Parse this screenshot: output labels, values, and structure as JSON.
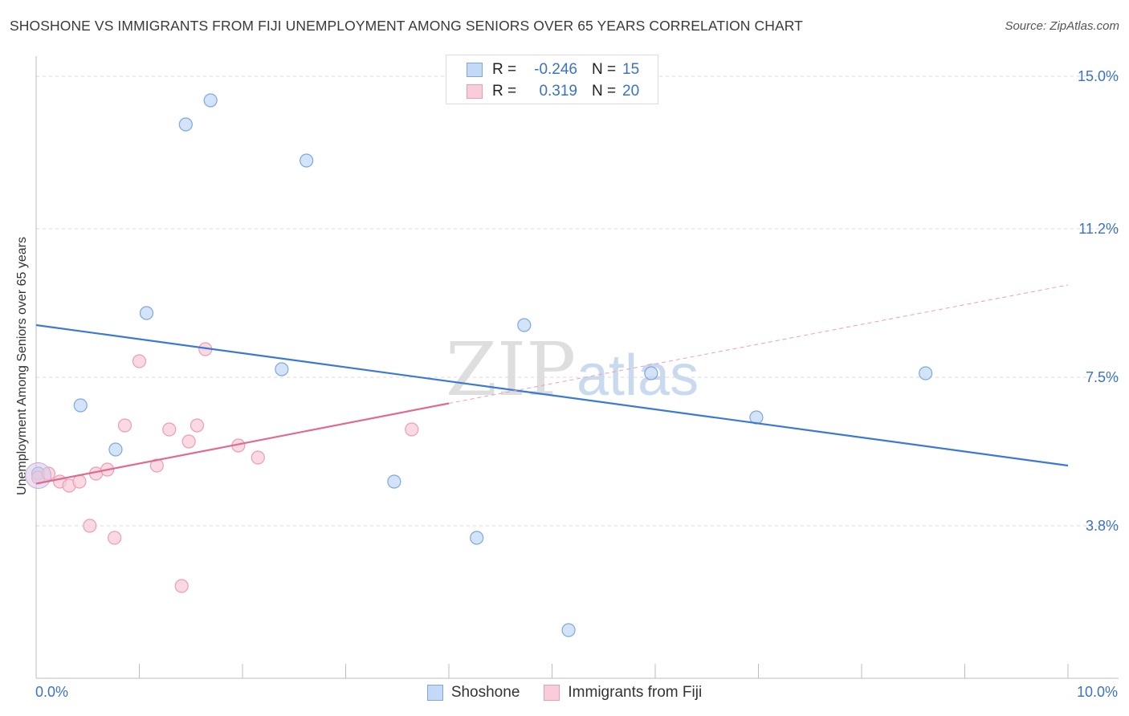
{
  "title": "SHOSHONE VS IMMIGRANTS FROM FIJI UNEMPLOYMENT AMONG SENIORS OVER 65 YEARS CORRELATION CHART",
  "source": "Source: ZipAtlas.com",
  "watermark": {
    "zip": "ZIP",
    "atlas": "atlas"
  },
  "legend_top": [
    {
      "label": "R =",
      "r": "-0.246",
      "n_label": "N =",
      "n": "15",
      "color": "#b7d0f2",
      "border": "#7da7e0"
    },
    {
      "label": "R =",
      "r": "0.319",
      "n_label": "N =",
      "n": "20",
      "color": "#f8c6d4",
      "border": "#e99ab2"
    }
  ],
  "x_min_label": "0.0%",
  "x_max_label": "10.0%",
  "chart_data": {
    "type": "scatter",
    "title": "SHOSHONE VS IMMIGRANTS FROM FIJI UNEMPLOYMENT AMONG SENIORS OVER 65 YEARS CORRELATION CHART",
    "xlabel": "",
    "ylabel": "Unemployment Among Seniors over 65 years",
    "xlim": [
      0,
      10
    ],
    "ylim": [
      0,
      15.5
    ],
    "y_ticks": [
      3.8,
      7.5,
      11.2,
      15.0
    ],
    "y_tick_labels": [
      "3.8%",
      "7.5%",
      "11.2%",
      "15.0%"
    ],
    "x_tick_labels": [
      "0.0%",
      "10.0%"
    ],
    "series": [
      {
        "name": "Shoshone",
        "color": "#7da7e0",
        "fill": "#c4d9f5",
        "line_color": "#3b79d4",
        "points": [
          [
            0.02,
            5.1
          ],
          [
            0.43,
            6.8
          ],
          [
            0.77,
            5.7
          ],
          [
            1.07,
            9.1
          ],
          [
            1.45,
            13.8
          ],
          [
            1.69,
            14.4
          ],
          [
            2.38,
            7.7
          ],
          [
            2.62,
            12.9
          ],
          [
            3.47,
            4.9
          ],
          [
            4.27,
            3.5
          ],
          [
            4.73,
            8.8
          ],
          [
            5.16,
            1.2
          ],
          [
            5.96,
            7.6
          ],
          [
            6.98,
            6.5
          ],
          [
            8.62,
            7.6
          ]
        ],
        "trend": {
          "x0": 0.0,
          "y0": 8.8,
          "x1": 10.0,
          "y1": 5.3
        }
      },
      {
        "name": "Immigrants from Fiji",
        "color": "#eb9db5",
        "fill": "#f8ccd9",
        "line_color": "#e06a92",
        "points": [
          [
            0.02,
            5.0
          ],
          [
            0.12,
            5.1
          ],
          [
            0.23,
            4.9
          ],
          [
            0.32,
            4.8
          ],
          [
            0.42,
            4.9
          ],
          [
            0.52,
            3.8
          ],
          [
            0.58,
            5.1
          ],
          [
            0.69,
            5.2
          ],
          [
            0.76,
            3.5
          ],
          [
            0.86,
            6.3
          ],
          [
            1.0,
            7.9
          ],
          [
            1.17,
            5.3
          ],
          [
            1.29,
            6.2
          ],
          [
            1.41,
            2.3
          ],
          [
            1.48,
            5.9
          ],
          [
            1.56,
            6.3
          ],
          [
            1.64,
            8.2
          ],
          [
            1.96,
            5.8
          ],
          [
            2.15,
            5.5
          ],
          [
            3.64,
            6.2
          ]
        ],
        "trend": {
          "x0": 0.0,
          "y0": 4.85,
          "x1": 4.0,
          "y1": 6.85
        },
        "trend_dashed": {
          "x0": 4.0,
          "y0": 6.85,
          "x1": 10.0,
          "y1": 9.8
        }
      }
    ]
  }
}
